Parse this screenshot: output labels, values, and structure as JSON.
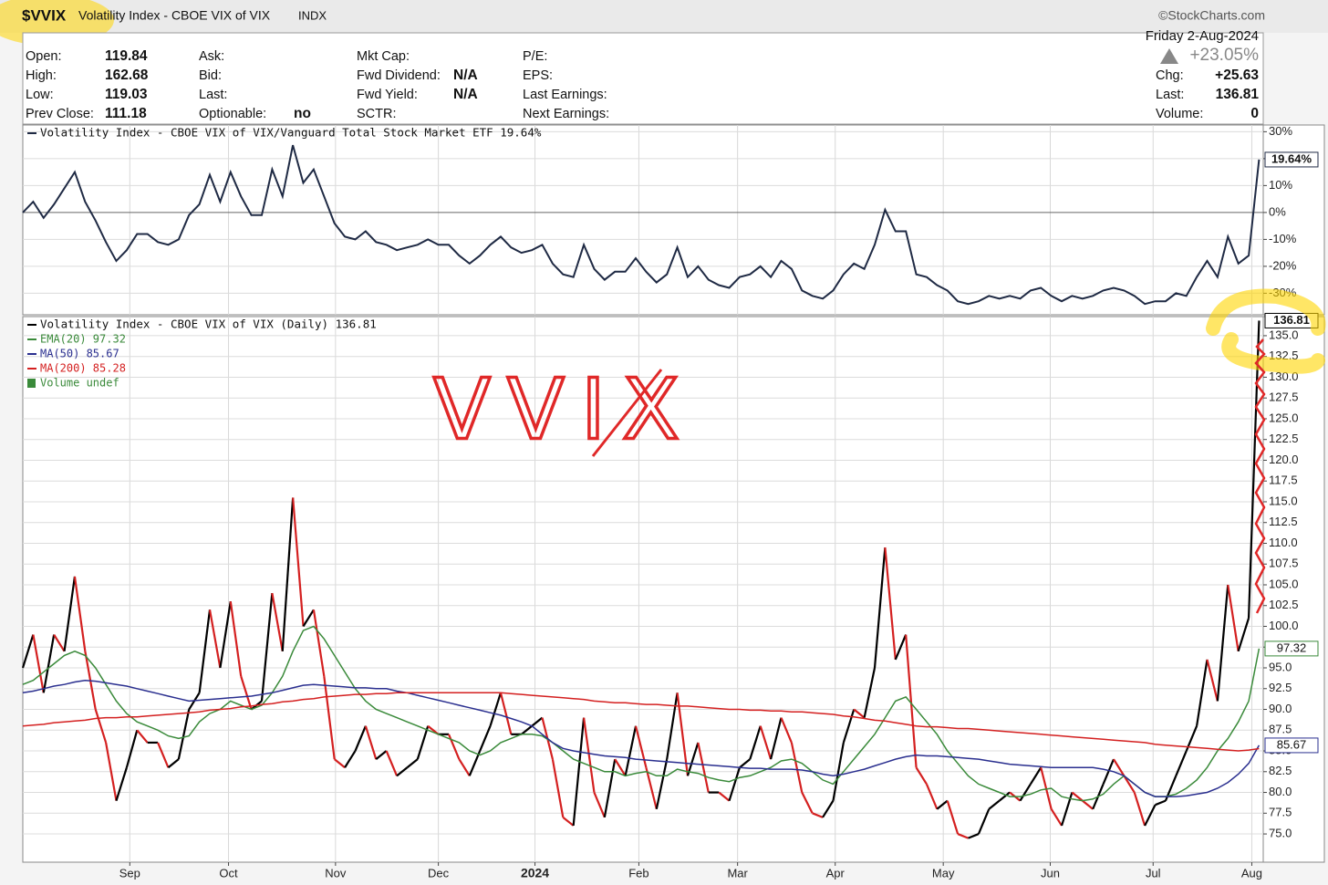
{
  "header": {
    "symbol": "$VVIX",
    "name": "Volatility Index - CBOE VIX of VIX",
    "exchange": "INDX",
    "brand": "©StockCharts.com"
  },
  "quote": {
    "left": [
      [
        {
          "label": "Open:",
          "value": "119.84"
        },
        {
          "label": "High:",
          "value": "162.68"
        },
        {
          "label": "Low:",
          "value": "119.03"
        },
        {
          "label": "Prev Close:",
          "value": "111.18"
        }
      ],
      [
        {
          "label": "Ask:"
        },
        {
          "label": "Bid:"
        },
        {
          "label": "Last:"
        },
        {
          "label": "Optionable:",
          "value": "no"
        }
      ],
      [
        {
          "label": "Mkt Cap:"
        },
        {
          "label": "Fwd Dividend:",
          "value": "N/A"
        },
        {
          "label": "Fwd Yield:",
          "value": "N/A"
        },
        {
          "label": "SCTR:"
        }
      ],
      [
        {
          "label": "P/E:"
        },
        {
          "label": "EPS:"
        },
        {
          "label": "Last Earnings:"
        },
        {
          "label": "Next Earnings:"
        }
      ]
    ],
    "date": "Friday  2-Aug-2024",
    "change_pct": "+23.05%",
    "right": [
      {
        "label": "Chg:",
        "value": "+25.63"
      },
      {
        "label": "Last:",
        "value": "136.81"
      },
      {
        "label": "Volume:",
        "value": "0"
      }
    ]
  },
  "chart_data": [
    {
      "type": "line",
      "zero_line": true,
      "grid": true,
      "xlim": [
        0,
        119.4
      ],
      "ylim": [
        -38,
        32.5
      ],
      "yticks": [
        {
          "value": 30,
          "label": "30%"
        },
        {
          "value": 20,
          "label": "20%"
        },
        {
          "value": 10,
          "label": "10%"
        },
        {
          "value": 0,
          "label": "0%"
        },
        {
          "value": -10,
          "label": "-10%"
        },
        {
          "value": -20,
          "label": "-20%"
        },
        {
          "value": -30,
          "label": "-30%"
        }
      ],
      "series": [
        {
          "name": "Volatility Index - CBOE VIX of VIX/Vanguard Total Stock Market ETF 19.64%",
          "color": "#1f2a44",
          "last_label": "19.64%",
          "values": [
            0,
            4,
            -2,
            3,
            9,
            15,
            4,
            -3,
            -11,
            -18,
            -14,
            -8,
            -8,
            -11,
            -12,
            -10,
            -1,
            3,
            14,
            4,
            15,
            6,
            -1,
            -1,
            16,
            6,
            25,
            11,
            16,
            6,
            -4,
            -9,
            -10,
            -7,
            -11,
            -12,
            -14,
            -13,
            -12,
            -10,
            -12,
            -12,
            -16,
            -19,
            -16,
            -12,
            -9,
            -13,
            -15,
            -14,
            -12,
            -19,
            -23,
            -24,
            -12,
            -21,
            -25,
            -22,
            -22,
            -17,
            -22,
            -26,
            -23,
            -13,
            -24,
            -20,
            -25,
            -27,
            -28,
            -24,
            -23,
            -20,
            -24,
            -18,
            -21,
            -29,
            -31,
            -32,
            -29,
            -23,
            -19,
            -21,
            -12,
            1,
            -7,
            -7,
            -23,
            -24,
            -27,
            -29,
            -33,
            -34,
            -33,
            -31,
            -32,
            -31,
            -32,
            -29,
            -28,
            -31,
            -33,
            -31,
            -32,
            -31,
            -29,
            -28,
            -29,
            -31,
            -34,
            -33,
            -33,
            -30,
            -31,
            -24,
            -18,
            -24,
            -9,
            -19,
            -16,
            19.64
          ]
        }
      ]
    },
    {
      "type": "line",
      "grid": true,
      "annotation": "VVIX",
      "volume_label": "Volume undef",
      "xlim": [
        0,
        119.4
      ],
      "ylim": [
        71.6,
        137.3
      ],
      "xticks": [
        {
          "value": 10.3,
          "label": "Sep"
        },
        {
          "value": 19.8,
          "label": "Oct"
        },
        {
          "value": 30.1,
          "label": "Nov"
        },
        {
          "value": 40.0,
          "label": "Dec"
        },
        {
          "value": 49.3,
          "label": "2024",
          "bold": true
        },
        {
          "value": 59.3,
          "label": "Feb"
        },
        {
          "value": 68.8,
          "label": "Mar"
        },
        {
          "value": 78.2,
          "label": "Apr"
        },
        {
          "value": 88.6,
          "label": "May"
        },
        {
          "value": 98.9,
          "label": "Jun"
        },
        {
          "value": 108.8,
          "label": "Jul"
        },
        {
          "value": 118.3,
          "label": "Aug"
        }
      ],
      "yticks": [
        {
          "value": 75,
          "label": "75.0"
        },
        {
          "value": 77.5,
          "label": "77.5"
        },
        {
          "value": 80,
          "label": "80.0"
        },
        {
          "value": 82.5,
          "label": "82.5"
        },
        {
          "value": 85,
          "label": "85.0"
        },
        {
          "value": 87.5,
          "label": "87.5"
        },
        {
          "value": 90,
          "label": "90.0"
        },
        {
          "value": 92.5,
          "label": "92.5"
        },
        {
          "value": 95,
          "label": "95.0"
        },
        {
          "value": 97.5,
          "label": "97.5"
        },
        {
          "value": 100,
          "label": "100.0"
        },
        {
          "value": 102.5,
          "label": "102.5"
        },
        {
          "value": 105,
          "label": "105.0"
        },
        {
          "value": 107.5,
          "label": "107.5"
        },
        {
          "value": 110,
          "label": "110.0"
        },
        {
          "value": 112.5,
          "label": "112.5"
        },
        {
          "value": 115,
          "label": "115.0"
        },
        {
          "value": 117.5,
          "label": "117.5"
        },
        {
          "value": 120,
          "label": "120.0"
        },
        {
          "value": 122.5,
          "label": "122.5"
        },
        {
          "value": 125,
          "label": "125.0"
        },
        {
          "value": 127.5,
          "label": "127.5"
        },
        {
          "value": 130,
          "label": "130.0"
        },
        {
          "value": 132.5,
          "label": "132.5"
        },
        {
          "value": 135,
          "label": "135.0"
        }
      ],
      "series": [
        {
          "name": "Volatility Index - CBOE VIX of VIX (Daily) 136.81",
          "color": "#000000",
          "up_color": "#000000",
          "down_color": "#d42020",
          "last_label": "136.81",
          "values": [
            95,
            99,
            92,
            99,
            97,
            106,
            97,
            90,
            86,
            79,
            83,
            87.5,
            86,
            86,
            83,
            84,
            90,
            92,
            102,
            95,
            103,
            94,
            90,
            91,
            104,
            97,
            115.5,
            100,
            102,
            94,
            84,
            83,
            85,
            88,
            84,
            85,
            82,
            83,
            84,
            88,
            87,
            87,
            84,
            82,
            85,
            88,
            92,
            87,
            87,
            88,
            89,
            84,
            77,
            76,
            89,
            80,
            77,
            84,
            82,
            88,
            83,
            78,
            84,
            92,
            82,
            86,
            80,
            80,
            79,
            83,
            84,
            88,
            84,
            89,
            86,
            80,
            77.5,
            77,
            79,
            86,
            90,
            89,
            95,
            109.5,
            96,
            99,
            83,
            81,
            78,
            79,
            75,
            74.5,
            75,
            78,
            79,
            80,
            79,
            81,
            83,
            78,
            76,
            80,
            79,
            78,
            81,
            84,
            82,
            80,
            76,
            78.5,
            79,
            82,
            85,
            88,
            96,
            91,
            105,
            97,
            101,
            136.81
          ]
        },
        {
          "name": "EMA(20) 97.32",
          "color": "#3a8a3a",
          "last_label": "97.32",
          "values": [
            93.0,
            93.5,
            94.5,
            95.5,
            96.5,
            97.0,
            96.5,
            95.0,
            93.0,
            91.0,
            89.5,
            88.5,
            88.0,
            87.5,
            86.8,
            86.5,
            86.8,
            88.5,
            89.5,
            90.0,
            91.0,
            90.5,
            90.0,
            90.5,
            92.0,
            94.0,
            97.0,
            99.5,
            100.0,
            98.5,
            96.5,
            94.5,
            92.5,
            91.0,
            90.0,
            89.5,
            89.0,
            88.5,
            88.0,
            87.5,
            87.0,
            86.5,
            86.0,
            85.0,
            84.5,
            85.0,
            86.0,
            86.5,
            87.0,
            87.0,
            86.8,
            86.0,
            85.0,
            84.0,
            83.5,
            83.0,
            82.5,
            82.5,
            82.0,
            82.3,
            82.5,
            82.0,
            82.0,
            82.8,
            82.5,
            82.3,
            81.8,
            81.5,
            81.3,
            81.8,
            82.0,
            82.5,
            83.0,
            83.8,
            84.0,
            83.5,
            82.5,
            81.5,
            81.0,
            82.5,
            84.0,
            85.5,
            87.0,
            89.0,
            91.0,
            91.5,
            90.0,
            88.5,
            87.0,
            85.0,
            83.5,
            82.0,
            81.0,
            80.5,
            80.0,
            79.5,
            79.5,
            79.8,
            80.3,
            80.5,
            79.5,
            79.2,
            79.0,
            79.2,
            79.8,
            81.0,
            82.0,
            81.0,
            80.0,
            79.5,
            79.5,
            79.8,
            80.5,
            81.5,
            83.0,
            85.0,
            86.5,
            88.5,
            91.0,
            97.32
          ]
        },
        {
          "name": "MA(50) 85.67",
          "color": "#2a2f8f",
          "last_label": "85.67",
          "values": [
            92.0,
            92.2,
            92.5,
            92.8,
            93.0,
            93.3,
            93.5,
            93.4,
            93.2,
            93.0,
            92.8,
            92.5,
            92.2,
            91.9,
            91.6,
            91.3,
            91.0,
            91.1,
            91.2,
            91.3,
            91.4,
            91.5,
            91.6,
            91.8,
            92.0,
            92.3,
            92.6,
            92.9,
            93.0,
            92.9,
            92.8,
            92.7,
            92.6,
            92.6,
            92.5,
            92.5,
            92.2,
            92.0,
            91.7,
            91.4,
            91.1,
            90.8,
            90.5,
            90.2,
            89.9,
            89.6,
            89.3,
            88.9,
            88.5,
            88.0,
            87.0,
            86.0,
            85.3,
            85.0,
            84.8,
            84.6,
            84.4,
            84.3,
            84.2,
            84.0,
            83.9,
            83.8,
            83.7,
            83.6,
            83.5,
            83.4,
            83.3,
            83.2,
            83.1,
            83.0,
            82.9,
            82.9,
            82.8,
            82.8,
            82.8,
            82.7,
            82.5,
            82.2,
            82.0,
            82.2,
            82.5,
            82.8,
            83.2,
            83.6,
            84.0,
            84.3,
            84.5,
            84.4,
            84.4,
            84.3,
            84.2,
            84.1,
            84.0,
            83.8,
            83.6,
            83.4,
            83.3,
            83.2,
            83.1,
            83.0,
            83.0,
            83.0,
            83.0,
            83.0,
            82.8,
            82.5,
            82.0,
            81.0,
            80.0,
            79.5,
            79.5,
            79.5,
            79.6,
            79.8,
            80.0,
            80.5,
            81.2,
            82.2,
            83.5,
            85.67
          ]
        },
        {
          "name": "MA(200) 85.28",
          "color": "#d42020",
          "values": [
            88.0,
            88.1,
            88.2,
            88.4,
            88.5,
            88.6,
            88.7,
            88.9,
            89.0,
            89.0,
            89.1,
            89.1,
            89.2,
            89.3,
            89.4,
            89.5,
            89.6,
            89.7,
            89.9,
            90.0,
            90.1,
            90.3,
            90.4,
            90.6,
            90.7,
            90.9,
            91.0,
            91.2,
            91.3,
            91.5,
            91.6,
            91.7,
            91.8,
            91.8,
            91.9,
            91.9,
            92.0,
            92.0,
            92.0,
            92.0,
            92.0,
            92.0,
            92.0,
            92.0,
            92.0,
            92.0,
            92.0,
            91.9,
            91.8,
            91.7,
            91.6,
            91.5,
            91.4,
            91.3,
            91.2,
            91.0,
            90.9,
            90.8,
            90.8,
            90.7,
            90.6,
            90.6,
            90.5,
            90.4,
            90.4,
            90.3,
            90.2,
            90.1,
            90.0,
            90.0,
            89.9,
            89.9,
            89.8,
            89.8,
            89.7,
            89.7,
            89.6,
            89.5,
            89.4,
            89.2,
            89.1,
            88.9,
            88.7,
            88.6,
            88.4,
            88.2,
            88.0,
            87.9,
            87.9,
            87.8,
            87.7,
            87.7,
            87.6,
            87.5,
            87.4,
            87.3,
            87.2,
            87.1,
            87.0,
            86.9,
            86.8,
            86.7,
            86.6,
            86.5,
            86.4,
            86.3,
            86.2,
            86.1,
            86.0,
            85.8,
            85.7,
            85.6,
            85.5,
            85.4,
            85.3,
            85.2,
            85.1,
            85.0,
            85.1,
            85.28
          ]
        }
      ]
    }
  ]
}
